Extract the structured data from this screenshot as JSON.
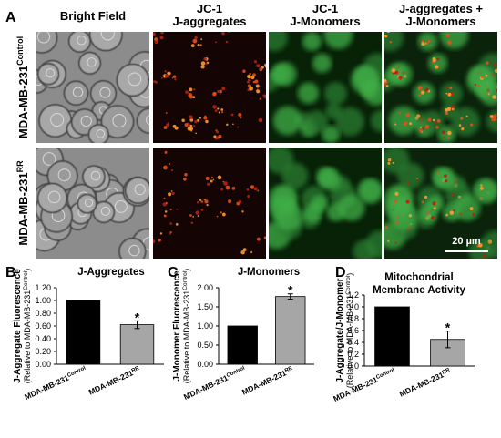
{
  "panel_a": {
    "label": "A",
    "columns": [
      [
        "Bright Field"
      ],
      [
        "JC-1",
        "J-aggregates"
      ],
      [
        "JC-1",
        "J-Monomers"
      ],
      [
        "J-aggregates +",
        "J-Monomers"
      ]
    ],
    "rows": [
      {
        "text": "MDA-MB-231",
        "sup": "Control"
      },
      {
        "text": "MDA-MB-231",
        "sup": "RR"
      }
    ],
    "scale_bar": "20 µm"
  },
  "chart_data": [
    {
      "type": "bar",
      "panel_label": "B",
      "title": [
        "J-Aggregates"
      ],
      "ylabel": "J-Aggregate Fluorescence",
      "ylabel_sub": {
        "text": "(Relative to MDA-MB-231",
        "sup": "Control",
        "tail": ")"
      },
      "categories": [
        "MDA-MB-231",
        "MDA-MB-231"
      ],
      "category_sups": [
        "Control",
        "RR"
      ],
      "values": [
        1.0,
        0.62
      ],
      "errors": [
        null,
        0.06
      ],
      "significance": [
        null,
        "*"
      ],
      "colors": [
        "#000000",
        "#a6a6a6"
      ],
      "ylim": [
        0,
        1.2
      ],
      "yticks": [
        {
          "value": 0,
          "label": "0.00"
        },
        {
          "value": 0.2,
          "label": "0.20"
        },
        {
          "value": 0.4,
          "label": "0.40"
        },
        {
          "value": 0.6,
          "label": "0.60"
        },
        {
          "value": 0.8,
          "label": "0.80"
        },
        {
          "value": 1.0,
          "label": "1.00"
        },
        {
          "value": 1.2,
          "label": "1.20"
        }
      ]
    },
    {
      "type": "bar",
      "panel_label": "C",
      "title": [
        "J-Monomers"
      ],
      "ylabel": "J-Monomer Fluorescence",
      "ylabel_sub": {
        "text": "(Relative to MDA-MB-231",
        "sup": "Control",
        "tail": ")"
      },
      "categories": [
        "MDA-MB-231",
        "MDA-MB-231"
      ],
      "category_sups": [
        "Control",
        "RR"
      ],
      "values": [
        1.0,
        1.77
      ],
      "errors": [
        null,
        0.07
      ],
      "significance": [
        null,
        "*"
      ],
      "colors": [
        "#000000",
        "#a6a6a6"
      ],
      "ylim": [
        0,
        2.0
      ],
      "yticks": [
        {
          "value": 0,
          "label": "0.00"
        },
        {
          "value": 0.5,
          "label": "0.50"
        },
        {
          "value": 1.0,
          "label": "1.00"
        },
        {
          "value": 1.5,
          "label": "1.50"
        },
        {
          "value": 2.0,
          "label": "2.00"
        }
      ]
    },
    {
      "type": "bar",
      "panel_label": "D",
      "title": [
        "Mitochondrial",
        "Membrane Activity"
      ],
      "ylabel": "J-Aggregate/J-Monomer",
      "ylabel_sub": {
        "text": "(Relative to MDA-MB-231",
        "sup": "Control",
        "tail": ")"
      },
      "categories": [
        "MDA-MB-231",
        "MDA-MB-231"
      ],
      "category_sups": [
        "Control",
        "RR"
      ],
      "values": [
        1.0,
        0.45
      ],
      "errors": [
        null,
        0.14
      ],
      "significance": [
        null,
        "*"
      ],
      "colors": [
        "#000000",
        "#a6a6a6"
      ],
      "ylim": [
        0,
        1.2
      ],
      "yticks": [
        {
          "value": 0,
          "label": "0.0"
        },
        {
          "value": 0.2,
          "label": "0.2"
        },
        {
          "value": 0.4,
          "label": "0.4"
        },
        {
          "value": 0.6,
          "label": "0.6"
        },
        {
          "value": 0.8,
          "label": "0.8"
        },
        {
          "value": 1.0,
          "label": "1.0"
        },
        {
          "value": 1.2,
          "label": "1.2"
        }
      ]
    }
  ]
}
